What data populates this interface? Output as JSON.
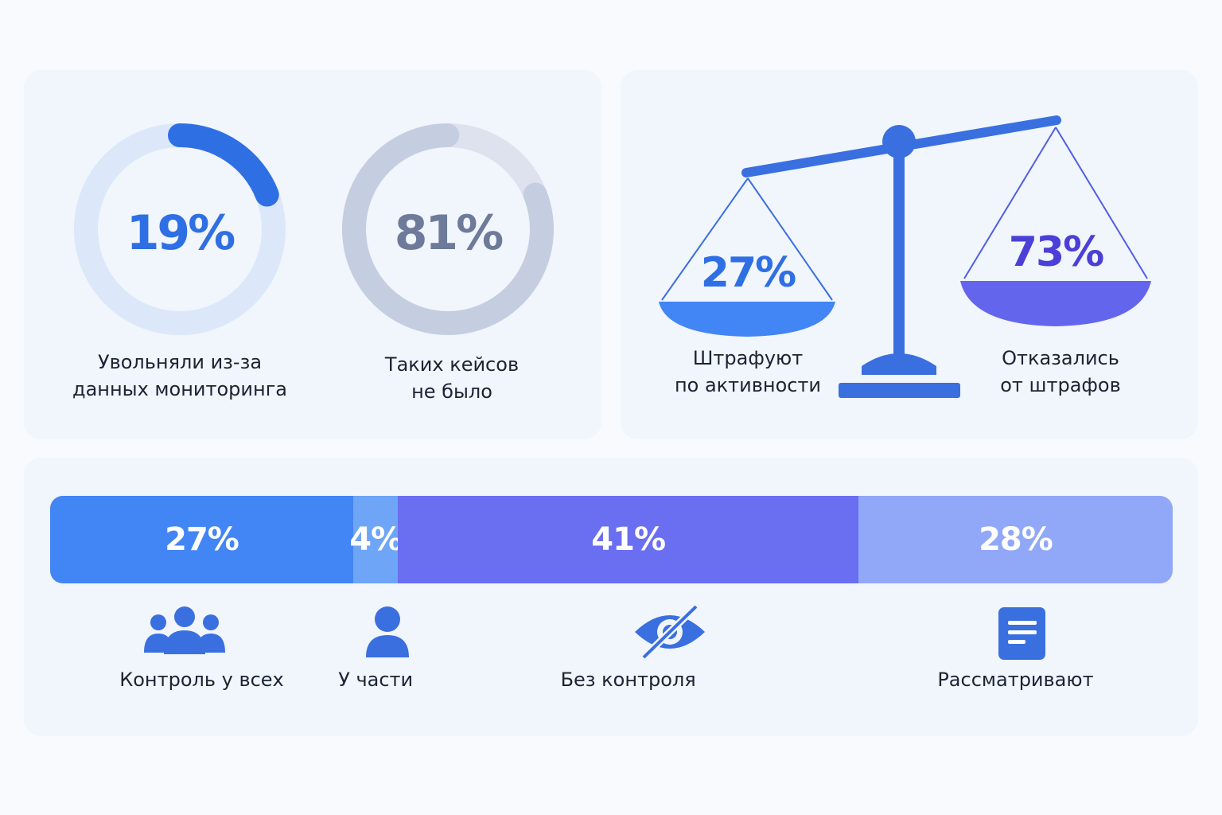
{
  "chart_data": [
    {
      "type": "pie",
      "values": [
        19,
        81
      ],
      "labels": [
        "Увольняли из-за\nданных мониторинга",
        "Таких кейсов\nне было"
      ],
      "value_labels": [
        "19%",
        "81%"
      ],
      "colors": [
        "#2f6fe4",
        "#c5cee0"
      ]
    },
    {
      "type": "bar",
      "values": [
        27,
        73
      ],
      "labels": [
        "Штрафуют\nпо активности",
        "Отказались\nот штрафов"
      ],
      "value_labels": [
        "27%",
        "73%"
      ],
      "colors": [
        "#4285f4",
        "#6366ec"
      ]
    },
    {
      "type": "bar",
      "values": [
        27,
        4,
        41,
        28
      ],
      "labels": [
        "Контроль у всех",
        "У части",
        "Без контроля",
        "Рассматривают"
      ],
      "value_labels": [
        "27%",
        "4%",
        "41%",
        "28%"
      ],
      "colors": [
        "#4285f4",
        "#6ea5f7",
        "#6a6ef0",
        "#91a7f8"
      ],
      "icons": [
        "group-icon",
        "person-icon",
        "eye-off-icon",
        "document-icon"
      ]
    }
  ]
}
